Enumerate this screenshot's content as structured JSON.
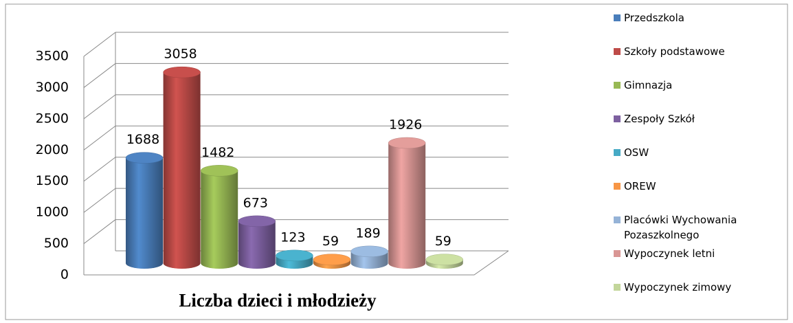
{
  "chart_data": {
    "type": "bar3d",
    "title": "Liczba dzieci i młodzieży",
    "categories": [
      "Przedszkola",
      "Szkoły podstawowe",
      "Gimnazja",
      "Zespoły Szkół",
      "OSW",
      "OREW",
      "Placówki Wychowania Pozaszkolnego",
      "Wypoczynek letni",
      "Wypoczynek zimowy"
    ],
    "values": [
      1688,
      3058,
      1482,
      673,
      123,
      59,
      189,
      1926,
      59
    ],
    "colors": [
      "#4a7ebb",
      "#be4b48",
      "#98b954",
      "#7d60a0",
      "#46aac5",
      "#f79646",
      "#95b3d7",
      "#d99694",
      "#c3d69b"
    ],
    "ylim": [
      0,
      3500
    ],
    "yticks": [
      0,
      500,
      1000,
      1500,
      2000,
      2500,
      3000,
      3500
    ],
    "grid": true,
    "legend": "right"
  }
}
